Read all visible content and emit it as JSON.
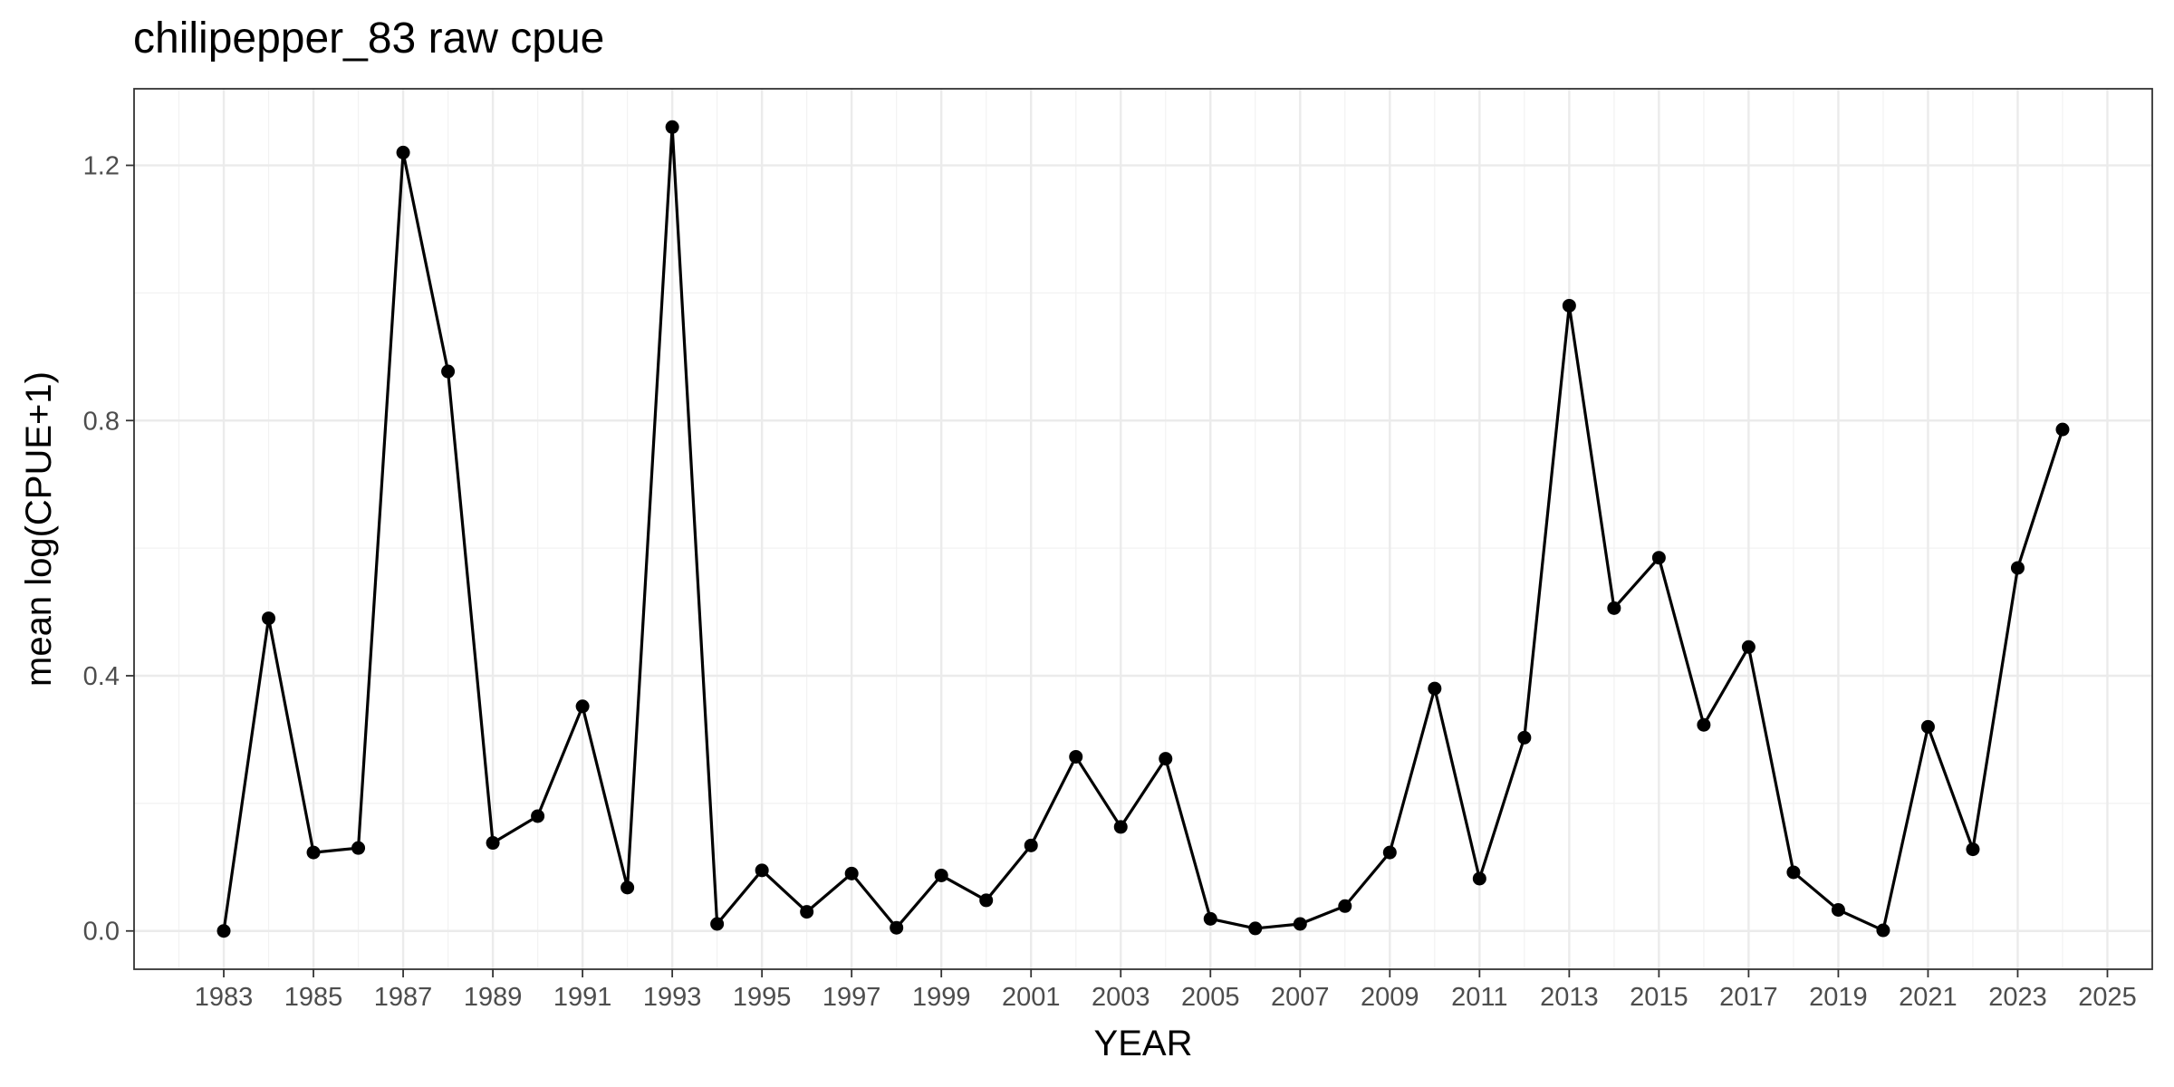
{
  "chart_data": {
    "type": "line",
    "title": "chilipepper_83 raw cpue",
    "xlabel": "YEAR",
    "ylabel": "mean log(CPUE+1)",
    "xlim": [
      1981,
      2026
    ],
    "ylim": [
      -0.06,
      1.32
    ],
    "x_ticks": [
      1983,
      1985,
      1987,
      1989,
      1991,
      1993,
      1995,
      1997,
      1999,
      2001,
      2003,
      2005,
      2007,
      2009,
      2011,
      2013,
      2015,
      2017,
      2019,
      2021,
      2023,
      2025
    ],
    "y_ticks": [
      0.0,
      0.4,
      0.8,
      1.2
    ],
    "y_tick_labels": [
      "0.0",
      "0.4",
      "0.8",
      "1.2"
    ],
    "grid": true,
    "series": [
      {
        "color": "#000000",
        "x": [
          1983,
          1984,
          1985,
          1986,
          1987,
          1988,
          1989,
          1990,
          1991,
          1992,
          1993,
          1994,
          1995,
          1996,
          1997,
          1998,
          1999,
          2000,
          2001,
          2002,
          2003,
          2004,
          2005,
          2006,
          2007,
          2008,
          2009,
          2010,
          2011,
          2012,
          2013,
          2014,
          2015,
          2016,
          2017,
          2018,
          2019,
          2020,
          2021,
          2022,
          2023,
          2024
        ],
        "y": [
          0.0,
          0.49,
          0.123,
          0.13,
          1.22,
          0.877,
          0.138,
          0.18,
          0.352,
          0.068,
          1.26,
          0.011,
          0.095,
          0.03,
          0.09,
          0.005,
          0.087,
          0.048,
          0.134,
          0.273,
          0.163,
          0.27,
          0.019,
          0.004,
          0.011,
          0.039,
          0.123,
          0.38,
          0.082,
          0.303,
          0.98,
          0.506,
          0.585,
          0.323,
          0.445,
          0.092,
          0.033,
          0.001,
          0.32,
          0.128,
          0.569,
          0.786
        ]
      }
    ]
  }
}
